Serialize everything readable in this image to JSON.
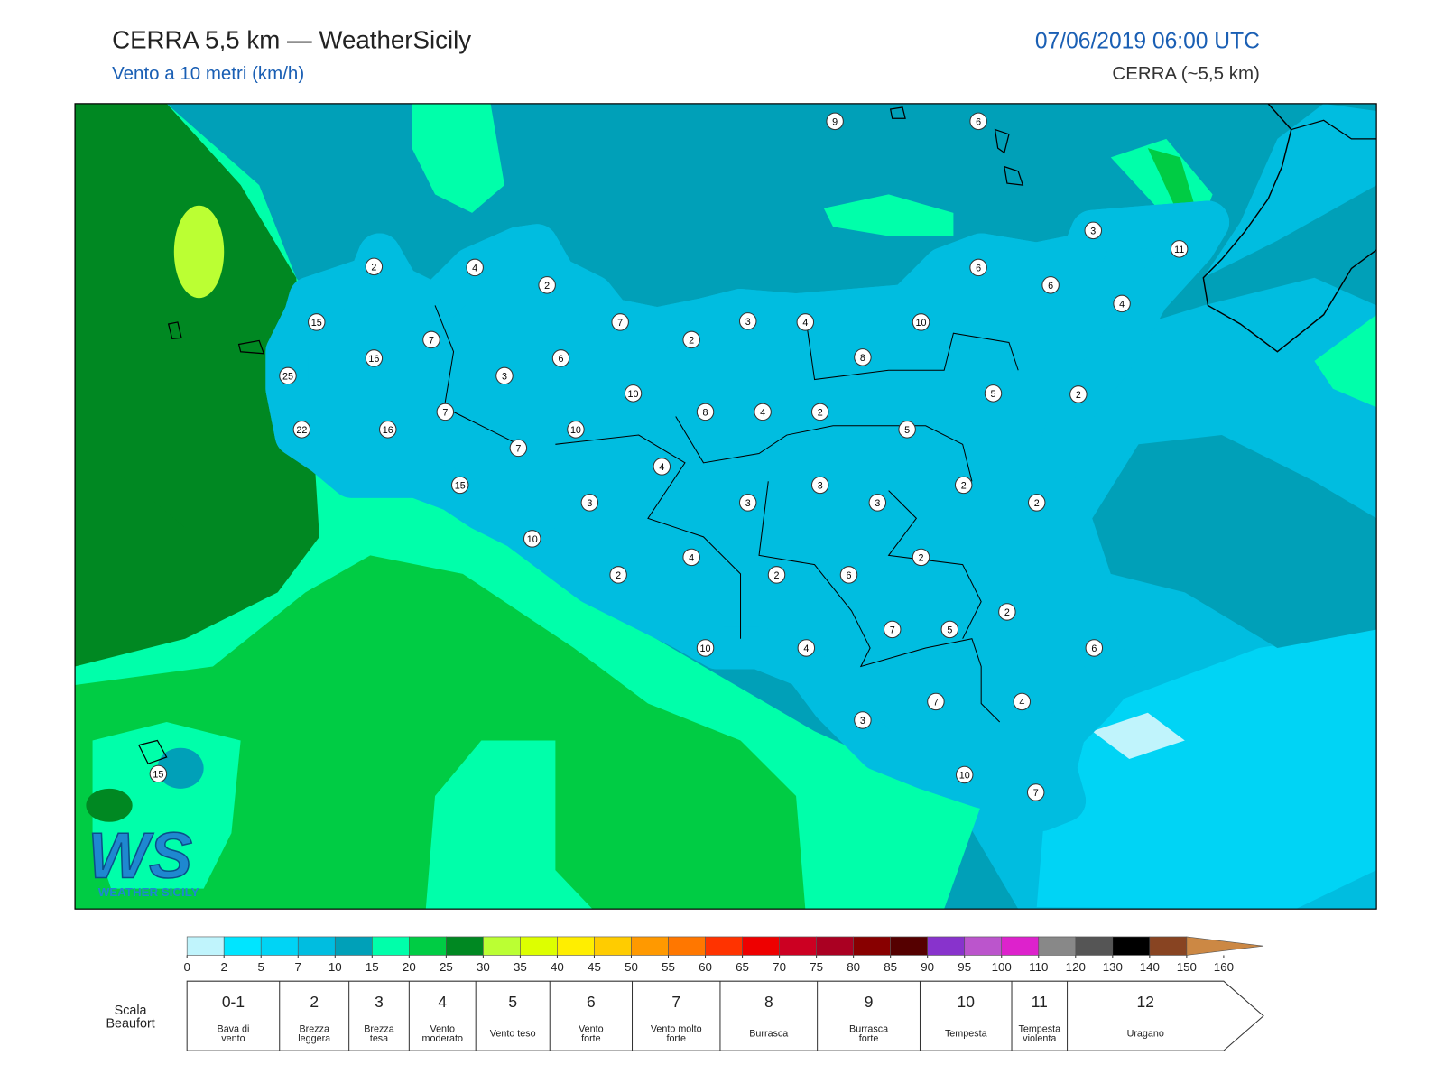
{
  "header": {
    "title": "CERRA 5,5 km — WeatherSicily",
    "subtitle": "Vento a 10 metri (km/h)",
    "datetime": "07/06/2019 06:00 UTC",
    "model": "CERRA (~5,5 km)"
  },
  "stations": [
    9,
    6,
    3,
    11,
    2,
    4,
    6,
    6,
    2,
    4,
    15,
    7,
    3,
    4,
    10,
    7,
    2,
    16,
    6,
    8,
    25,
    3,
    10,
    5,
    2,
    7,
    8,
    4,
    2,
    22,
    16,
    10,
    5,
    7,
    4,
    15,
    3,
    2,
    3,
    3,
    3,
    2,
    10,
    4,
    2,
    2,
    2,
    6,
    2,
    7,
    5,
    10,
    4,
    6,
    7,
    4,
    3,
    10,
    7,
    15
  ],
  "colorbar": {
    "ticks": [
      0,
      2,
      5,
      7,
      10,
      15,
      20,
      25,
      30,
      35,
      40,
      45,
      50,
      55,
      60,
      65,
      70,
      75,
      80,
      85,
      90,
      95,
      100,
      110,
      120,
      130,
      140,
      150,
      160
    ],
    "colors": [
      "#c0f4fc",
      "#00e5ff",
      "#00d4f5",
      "#00bde0",
      "#00a0b8",
      "#00ffaa",
      "#00cc44",
      "#008822",
      "#bbff33",
      "#ddff00",
      "#ffee00",
      "#ffcc00",
      "#ff9900",
      "#ff7700",
      "#ff3300",
      "#ee0000",
      "#cc0022",
      "#aa0022",
      "#880000",
      "#550000",
      "#8833cc",
      "#bb55cc",
      "#dd22cc",
      "#888888",
      "#555555",
      "#000000",
      "#884422",
      "#cc8844"
    ]
  },
  "beaufort": {
    "label": [
      "Scala",
      "Beaufort"
    ],
    "levels": [
      {
        "force": "0-1",
        "name": [
          "Bava di",
          "vento"
        ]
      },
      {
        "force": "2",
        "name": [
          "Brezza",
          "leggera"
        ]
      },
      {
        "force": "3",
        "name": [
          "Brezza",
          "tesa"
        ]
      },
      {
        "force": "4",
        "name": [
          "Vento",
          "moderato"
        ]
      },
      {
        "force": "5",
        "name": [
          "Vento teso"
        ]
      },
      {
        "force": "6",
        "name": [
          "Vento",
          "forte"
        ]
      },
      {
        "force": "7",
        "name": [
          "Vento molto",
          "forte"
        ]
      },
      {
        "force": "8",
        "name": [
          "Burrasca"
        ]
      },
      {
        "force": "9",
        "name": [
          "Burrasca",
          "forte"
        ]
      },
      {
        "force": "10",
        "name": [
          "Tempesta"
        ]
      },
      {
        "force": "11",
        "name": [
          "Tempesta",
          "violenta"
        ]
      },
      {
        "force": "12",
        "name": [
          "Uragano"
        ]
      }
    ]
  },
  "logo": {
    "mark": "WS",
    "text": "WEATHER SICILY"
  }
}
